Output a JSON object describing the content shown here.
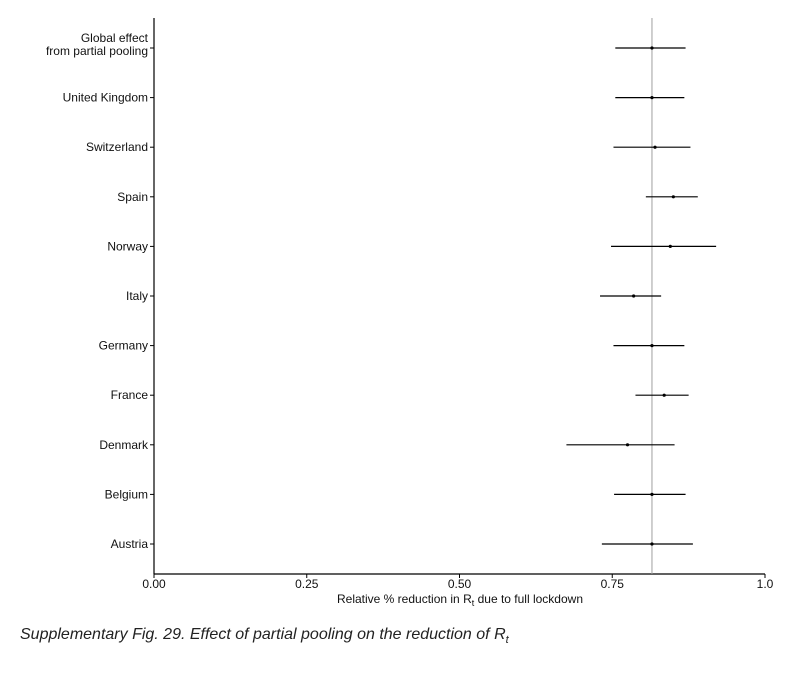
{
  "chart_data": {
    "type": "forest",
    "xlabel_prefix": "Relative % reduction in",
    "xlabel_symbol": "R",
    "xlabel_subscript": "t",
    "xlabel_suffix": "due to full lockdown",
    "xlim": [
      0,
      1
    ],
    "xticks": [
      0.0,
      0.25,
      0.5,
      0.75,
      1.0
    ],
    "xtick_labels": [
      "0.00",
      "0.25",
      "0.50",
      "0.75",
      "1.0"
    ],
    "reference_line": 0.815,
    "grid": false,
    "categories": [
      [
        "Global effect",
        "from partial pooling"
      ],
      [
        "United Kingdom"
      ],
      [
        "Switzerland"
      ],
      [
        "Spain"
      ],
      [
        "Norway"
      ],
      [
        "Italy"
      ],
      [
        "Germany"
      ],
      [
        "France"
      ],
      [
        "Denmark"
      ],
      [
        "Belgium"
      ],
      [
        "Austria"
      ]
    ],
    "estimates": [
      0.815,
      0.815,
      0.82,
      0.85,
      0.845,
      0.785,
      0.815,
      0.835,
      0.775,
      0.815,
      0.815
    ],
    "lower": [
      0.755,
      0.755,
      0.752,
      0.805,
      0.748,
      0.73,
      0.752,
      0.788,
      0.675,
      0.753,
      0.733
    ],
    "upper": [
      0.87,
      0.868,
      0.878,
      0.89,
      0.92,
      0.83,
      0.868,
      0.875,
      0.852,
      0.87,
      0.882
    ],
    "colors": {
      "axis": "#000000",
      "ci_line": "#000000",
      "ref_line": "#a0a0a0"
    }
  },
  "caption": {
    "text": "Supplementary Fig. 29. Effect of partial pooling on the reduction of ",
    "symbol": "R",
    "subscript": "t"
  }
}
